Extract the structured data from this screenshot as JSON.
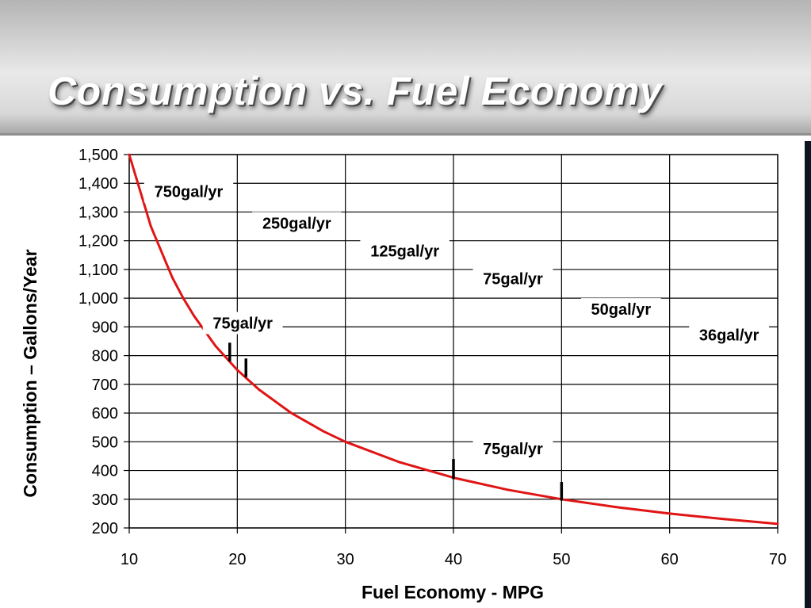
{
  "slide": {
    "title": "Consumption vs. Fuel Economy"
  },
  "chart_data": {
    "type": "line",
    "title": "Consumption vs. Fuel Economy",
    "xlabel": "Fuel Economy - MPG",
    "ylabel": "Consumption – Gallons/Year",
    "xlim": [
      10,
      70
    ],
    "ylim": [
      200,
      1500
    ],
    "x_ticks": [
      10,
      20,
      30,
      40,
      50,
      60,
      70
    ],
    "y_ticks": [
      200,
      300,
      400,
      500,
      600,
      700,
      800,
      900,
      1000,
      1100,
      1200,
      1300,
      1400,
      1500
    ],
    "y_tick_labels": [
      "200",
      "300",
      "400",
      "500",
      "600",
      "700",
      "800",
      "900",
      "1,000",
      "1,100",
      "1,200",
      "1,300",
      "1,400",
      "1,500"
    ],
    "grid": true,
    "series": [
      {
        "color": "#e01414",
        "x": [
          10,
          12,
          14,
          15,
          16,
          18,
          20,
          22,
          25,
          28,
          30,
          35,
          40,
          45,
          50,
          55,
          60,
          65,
          70
        ],
        "y": [
          1500,
          1250,
          1071,
          1000,
          938,
          833,
          750,
          682,
          600,
          536,
          500,
          429,
          375,
          333,
          300,
          273,
          250,
          231,
          214
        ]
      }
    ],
    "annotations": [
      {
        "text": "750gal/yr",
        "x": 15.5,
        "y": 1355
      },
      {
        "text": "250gal/yr",
        "x": 25.5,
        "y": 1245
      },
      {
        "text": "125gal/yr",
        "x": 35.5,
        "y": 1148
      },
      {
        "text": "75gal/yr",
        "x": 45.5,
        "y": 1052
      },
      {
        "text": "50gal/yr",
        "x": 55.5,
        "y": 945
      },
      {
        "text": "36gal/yr",
        "x": 65.5,
        "y": 855
      },
      {
        "text": "75gal/yr",
        "x": 20.5,
        "y": 897
      },
      {
        "text": "75gal/yr",
        "x": 45.5,
        "y": 460
      }
    ],
    "markers": [
      {
        "x": 19.3,
        "y_from": 780,
        "y_to": 845
      },
      {
        "x": 20.8,
        "y_from": 725,
        "y_to": 790
      },
      {
        "x": 40,
        "y_from": 370,
        "y_to": 440
      },
      {
        "x": 50,
        "y_from": 295,
        "y_to": 360
      }
    ]
  }
}
